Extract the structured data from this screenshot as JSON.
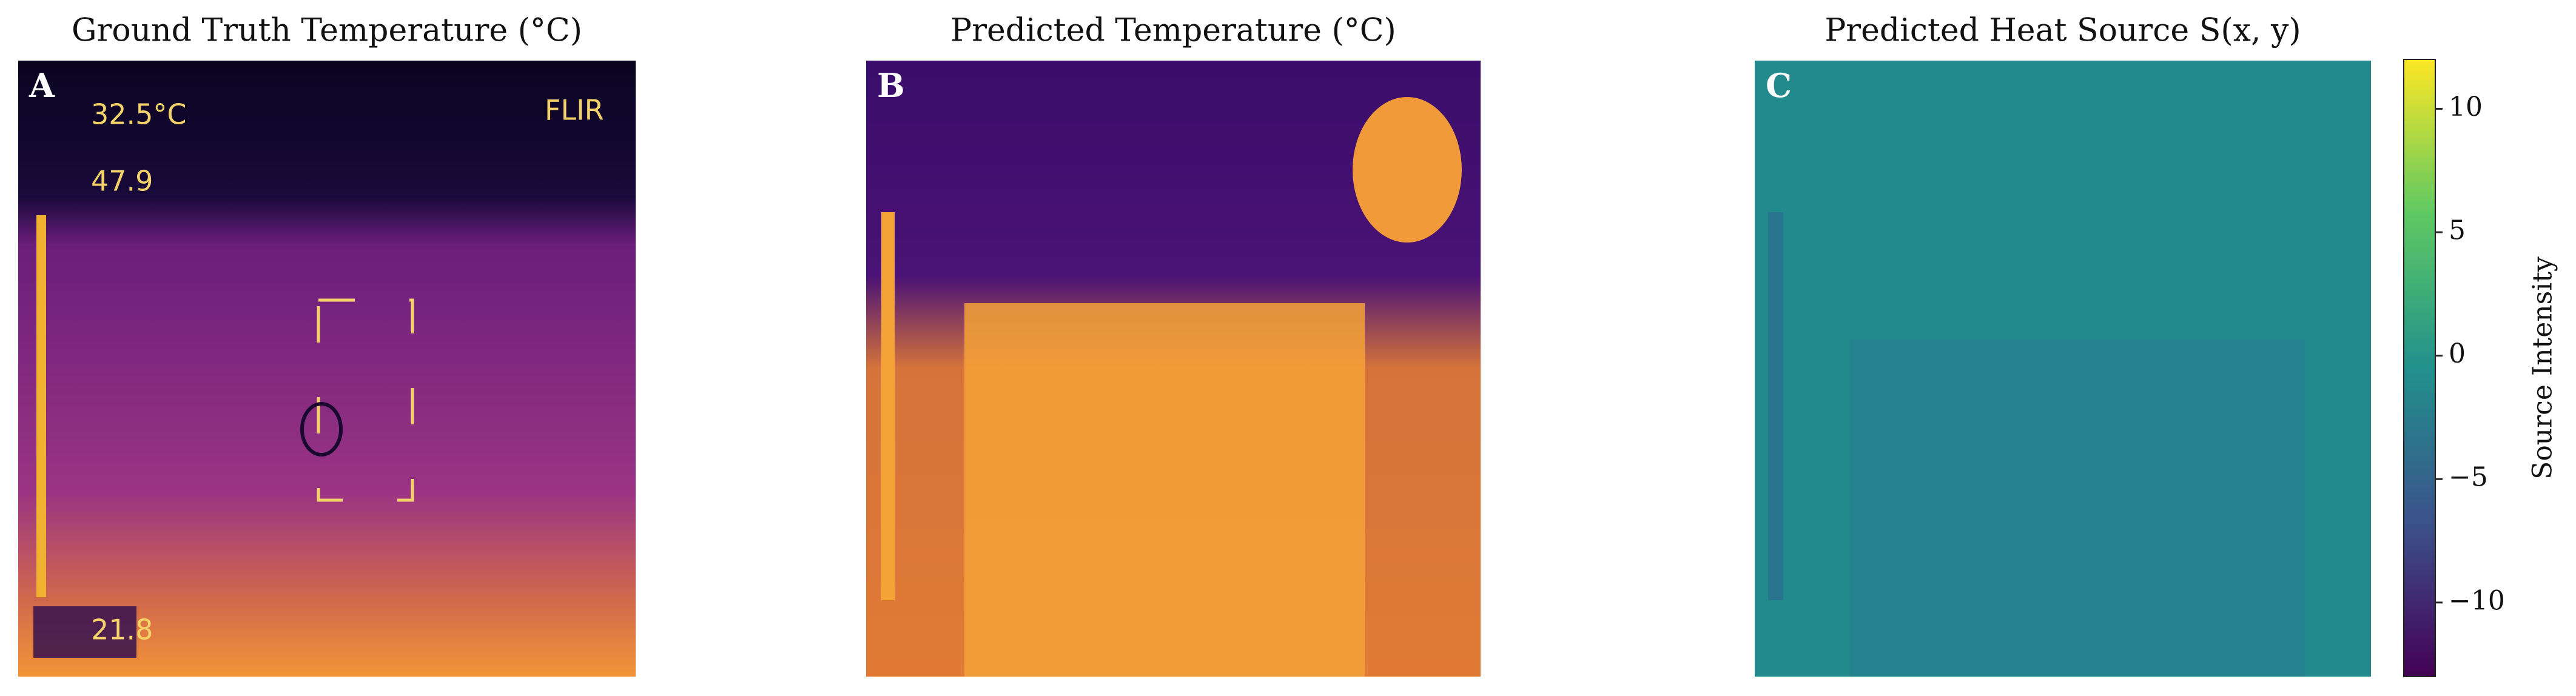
{
  "chart_data": [
    {
      "type": "image",
      "title": "Ground Truth Temperature (°C)",
      "panel_label": "A",
      "annotations": [
        "32.5°C",
        "47.9",
        "21.8",
        "FLIR"
      ]
    },
    {
      "type": "image",
      "title": "Predicted Temperature (°C)",
      "panel_label": "B"
    },
    {
      "type": "image",
      "title": "Predicted Heat Source S(x, y)",
      "panel_label": "C",
      "colorbar": {
        "label": "Source Intensity",
        "colormap": "viridis",
        "lim": [
          -13,
          12
        ],
        "ticks": [
          10,
          5,
          0,
          {
            "value": -5,
            "label": "−5"
          },
          {
            "value": -10,
            "label": "−10"
          }
        ]
      }
    }
  ]
}
